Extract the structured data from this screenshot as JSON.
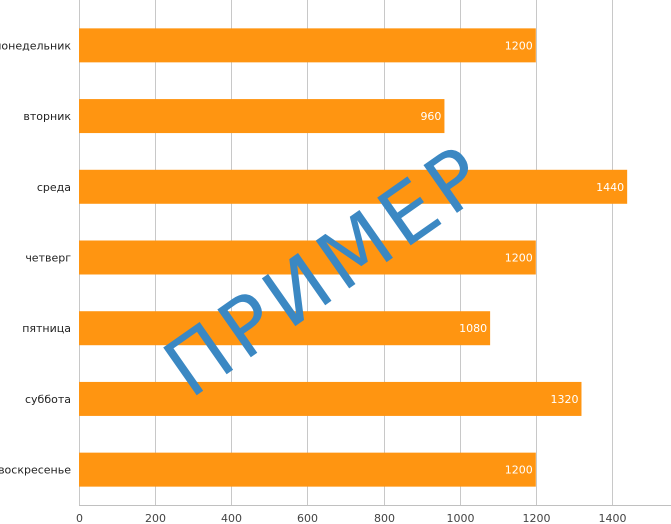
{
  "chart_data": {
    "type": "bar",
    "orientation": "horizontal",
    "categories": [
      "понедельник",
      "вторник",
      "среда",
      "четверг",
      "пятница",
      "суббота",
      "воскресенье"
    ],
    "values": [
      1200,
      960,
      1440,
      1200,
      1080,
      1320,
      1200
    ],
    "value_labels": [
      "1200",
      "960",
      "1440",
      "1200",
      "1080",
      "1320",
      "1200"
    ],
    "xlim": [
      0,
      1500
    ],
    "xticks": [
      0,
      200,
      400,
      600,
      800,
      1000,
      1200,
      1400
    ],
    "xtick_labels": [
      "0",
      "200",
      "400",
      "600",
      "800",
      "1000",
      "1200",
      "1400"
    ],
    "grid": true,
    "bar_color": "#ff9511"
  },
  "watermark": {
    "text": "ПРИМЕР",
    "color": "#3b88c3"
  }
}
